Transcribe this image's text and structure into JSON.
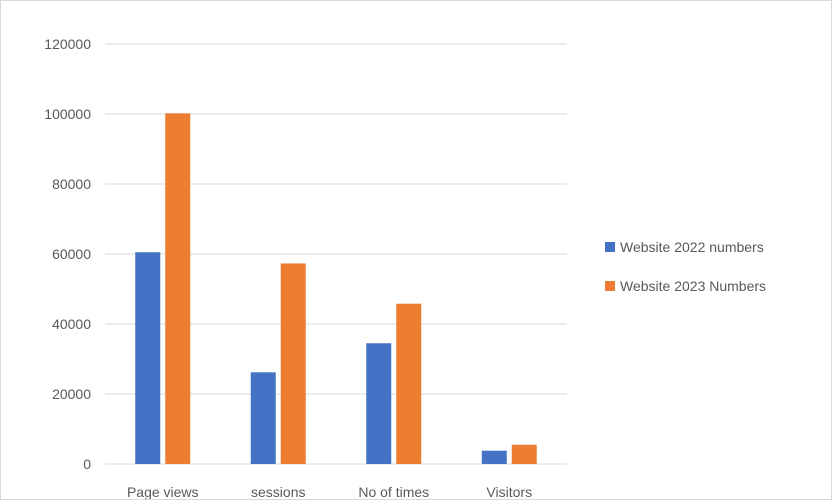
{
  "chart_data": {
    "type": "bar",
    "categories": [
      "Page views",
      "sessions",
      "No of times",
      "Visitors"
    ],
    "series": [
      {
        "name": "Website 2022 numbers",
        "color": "#4472c4",
        "values": [
          60500,
          26200,
          34500,
          3800
        ]
      },
      {
        "name": "Website 2023 Numbers",
        "color": "#ed7d31",
        "values": [
          100200,
          57300,
          45800,
          5500
        ]
      }
    ],
    "y_ticks": [
      "0",
      "20000",
      "40000",
      "60000",
      "80000",
      "100000",
      "120000"
    ],
    "ylim": [
      0,
      120000
    ],
    "grid": true,
    "legend_position": "right",
    "title": "",
    "xlabel": "",
    "ylabel": ""
  }
}
